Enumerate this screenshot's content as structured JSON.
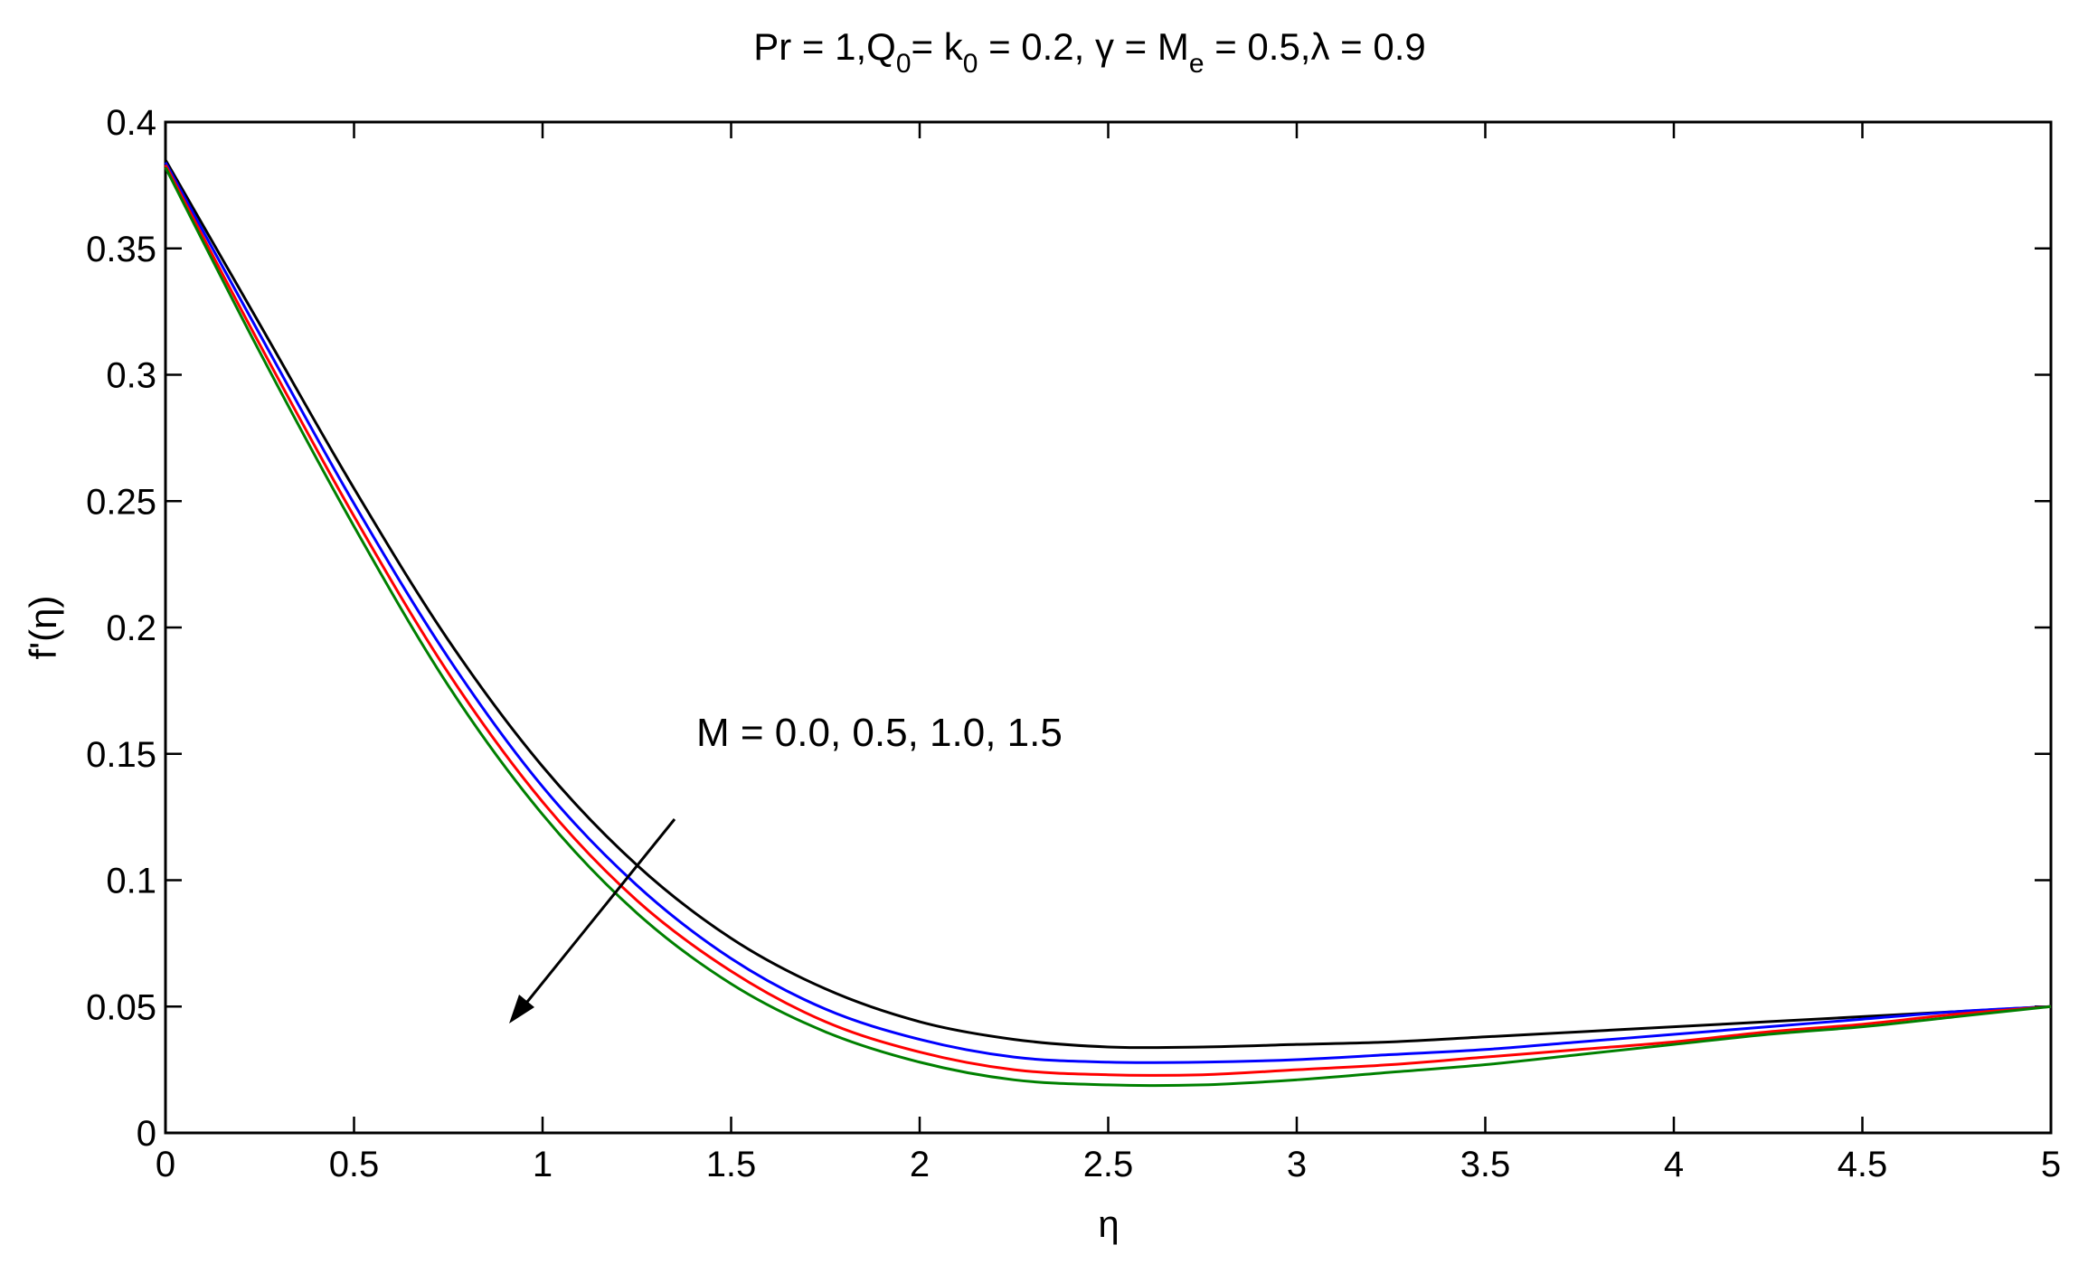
{
  "chart_data": {
    "type": "line",
    "title": "Pr = 1,Q0= k0 = 0.2, γ = Me = 0.5,λ = 0.9",
    "title_parts": {
      "part1": "Pr = 1,Q",
      "sub1": "0",
      "part2": "= k",
      "sub2": "0",
      "part3": " = 0.2, γ = M",
      "sub3": "e",
      "part4": " = 0.5,λ = 0.9"
    },
    "xlabel": "η",
    "ylabel": "f'(η)",
    "xlim": [
      0,
      5
    ],
    "ylim": [
      0,
      0.4
    ],
    "xticks": [
      "0",
      "0.5",
      "1",
      "1.5",
      "2",
      "2.5",
      "3",
      "3.5",
      "4",
      "4.5",
      "5"
    ],
    "yticks": [
      "0",
      "0.05",
      "0.1",
      "0.15",
      "0.2",
      "0.25",
      "0.3",
      "0.35",
      "0.4"
    ],
    "grid": false,
    "annotation": "M = 0.0, 0.5, 1.0, 1.5",
    "x": [
      0,
      0.25,
      0.5,
      0.75,
      1.0,
      1.25,
      1.5,
      1.75,
      2.0,
      2.25,
      2.5,
      2.75,
      3.0,
      3.25,
      3.5,
      3.75,
      4.0,
      4.25,
      4.5,
      4.75,
      5.0
    ],
    "series": [
      {
        "color": "#000000",
        "values": [
          0.385,
          0.32,
          0.255,
          0.195,
          0.145,
          0.106,
          0.077,
          0.057,
          0.044,
          0.037,
          0.034,
          0.034,
          0.035,
          0.036,
          0.038,
          0.04,
          0.042,
          0.044,
          0.046,
          0.048,
          0.05
        ]
      },
      {
        "color": "#0000ff",
        "values": [
          0.384,
          0.316,
          0.249,
          0.188,
          0.137,
          0.098,
          0.069,
          0.049,
          0.037,
          0.03,
          0.028,
          0.028,
          0.029,
          0.031,
          0.033,
          0.036,
          0.039,
          0.042,
          0.045,
          0.048,
          0.05
        ]
      },
      {
        "color": "#ff0000",
        "values": [
          0.383,
          0.312,
          0.244,
          0.182,
          0.131,
          0.092,
          0.064,
          0.044,
          0.032,
          0.025,
          0.023,
          0.023,
          0.025,
          0.027,
          0.03,
          0.033,
          0.036,
          0.04,
          0.043,
          0.047,
          0.05
        ]
      },
      {
        "color": "#008000",
        "values": [
          0.382,
          0.309,
          0.24,
          0.177,
          0.126,
          0.087,
          0.059,
          0.04,
          0.028,
          0.021,
          0.019,
          0.019,
          0.021,
          0.024,
          0.027,
          0.031,
          0.035,
          0.039,
          0.042,
          0.046,
          0.05
        ]
      }
    ]
  }
}
